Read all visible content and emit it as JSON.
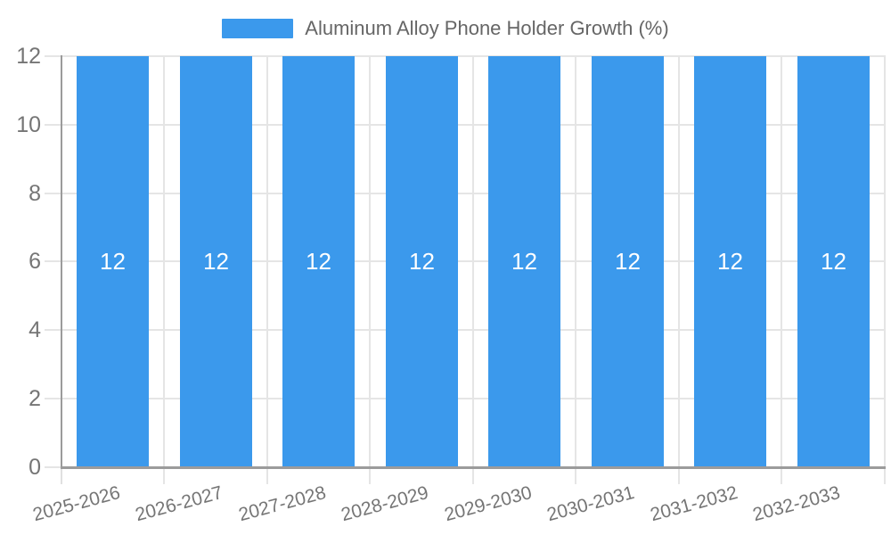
{
  "chart_data": {
    "type": "bar",
    "title": "",
    "legend_label": "Aluminum Alloy Phone Holder Growth (%)",
    "legend_position": "top-center",
    "categories": [
      "2025-2026",
      "2026-2027",
      "2027-2028",
      "2028-2029",
      "2029-2030",
      "2030-2031",
      "2031-2032",
      "2032-2033"
    ],
    "values": [
      12,
      12,
      12,
      12,
      12,
      12,
      12,
      12
    ],
    "bar_value_labels_shown": true,
    "xlabel": "",
    "ylabel": "",
    "ylim": [
      0,
      12
    ],
    "yticks": [
      "0",
      "2",
      "4",
      "6",
      "8",
      "10",
      "12"
    ],
    "grid": "on",
    "x_tick_rotation_deg": -15,
    "colors": {
      "bar": "#3b99ec",
      "bar_value_label": "#ffffff",
      "grid": "#e5e5e5",
      "axis_line": "#9b9b9b",
      "tick_text": "#757575",
      "legend_text": "#666666",
      "background": "#ffffff"
    }
  }
}
